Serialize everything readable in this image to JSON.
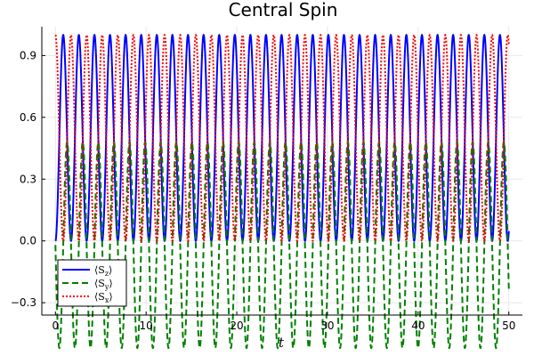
{
  "chart_data": {
    "type": "line",
    "title": "Central Spin",
    "xlabel": "t",
    "ylabel": "",
    "xlim": [
      -1.5,
      51.5
    ],
    "ylim": [
      -0.36,
      1.04
    ],
    "xticks": [
      0,
      10,
      20,
      30,
      40,
      50
    ],
    "xtick_labels": [
      "0",
      "10",
      "20",
      "30",
      "40",
      "50"
    ],
    "yticks": [
      -0.3,
      0.0,
      0.3,
      0.6,
      0.9
    ],
    "ytick_labels": [
      "−0.3",
      "0.0",
      "0.3",
      "0.6",
      "0.9"
    ],
    "grid": true,
    "legend_position": "bottom-left",
    "series": [
      {
        "name": "⟨Sz⟩",
        "label_main": "⟨S",
        "label_sub": "z",
        "label_end": "⟩",
        "color": "#0000ff",
        "style": "solid",
        "model": {
          "offset": 0.5,
          "amplitude": 0.5,
          "period": 1.72,
          "phase": -1.5708,
          "t_start": 0,
          "t_end": 50
        }
      },
      {
        "name": "⟨Sy⟩",
        "label_main": "⟨S",
        "label_sub": "y",
        "label_end": "⟩",
        "color": "#008000",
        "style": "dashed",
        "model": {
          "offset": -0.02,
          "amplitude": 0.5,
          "period": 1.72,
          "phase": 3.1416,
          "t_start": 0,
          "t_end": 50
        }
      },
      {
        "name": "⟨Sx⟩",
        "label_main": "⟨S",
        "label_sub": "x",
        "label_end": "⟩",
        "color": "#ff0000",
        "style": "dotted",
        "model": {
          "offset": 0.5,
          "amplitude": 0.5,
          "period": 1.72,
          "phase": 1.5708,
          "t_start": 0,
          "t_end": 50
        }
      }
    ]
  }
}
